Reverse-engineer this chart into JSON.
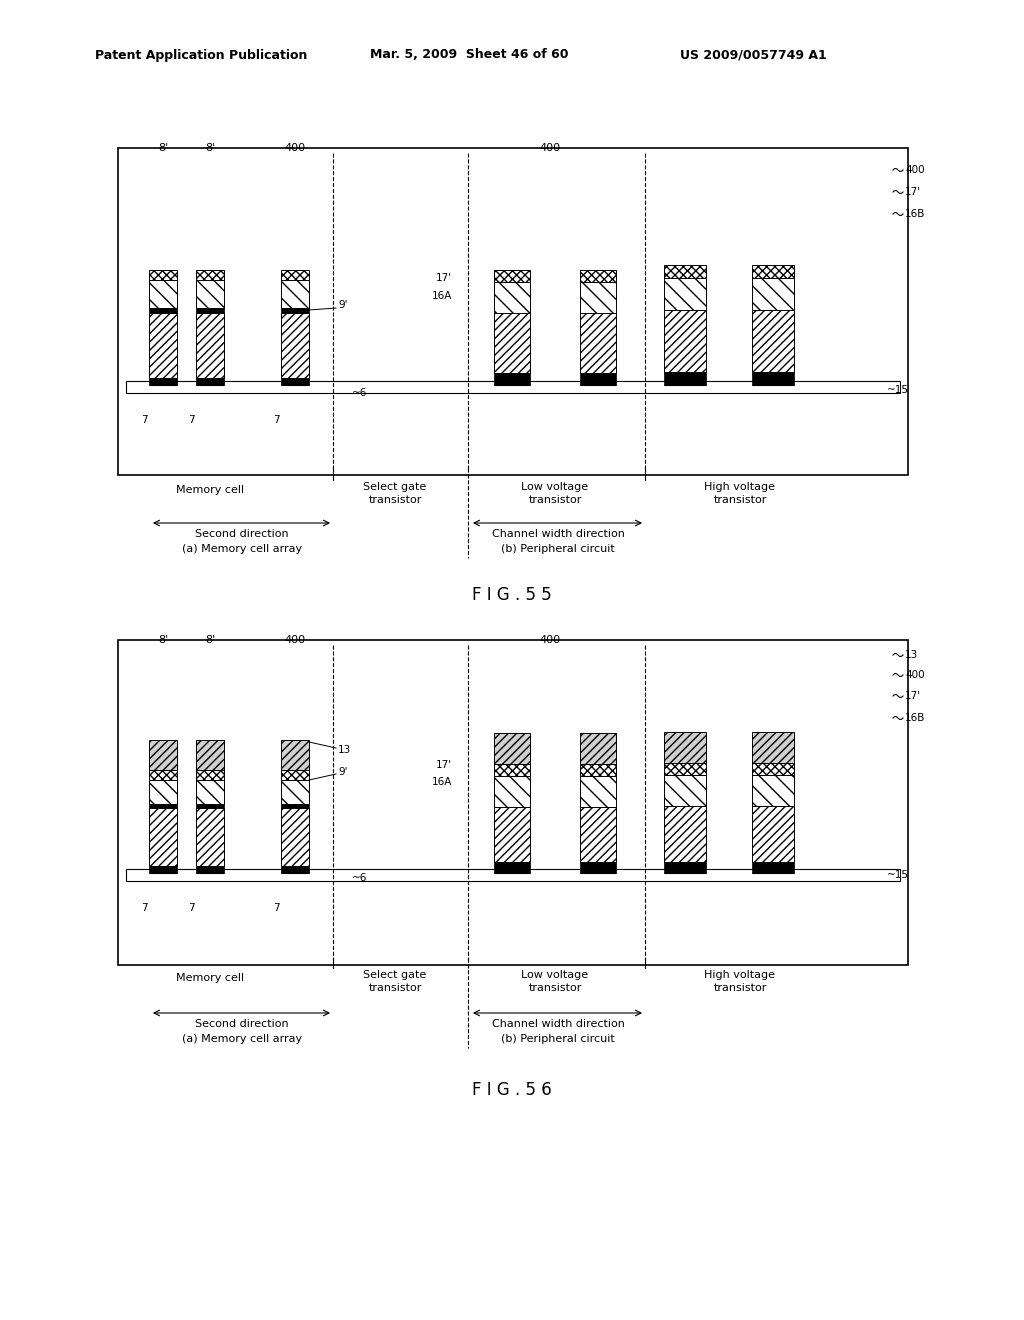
{
  "header_left": "Patent Application Publication",
  "header_mid": "Mar. 5, 2009  Sheet 46 of 60",
  "header_right": "US 2009/0057749 A1",
  "fig55_label": "F I G . 5 5",
  "fig56_label": "F I G . 5 6",
  "background": "#ffffff"
}
